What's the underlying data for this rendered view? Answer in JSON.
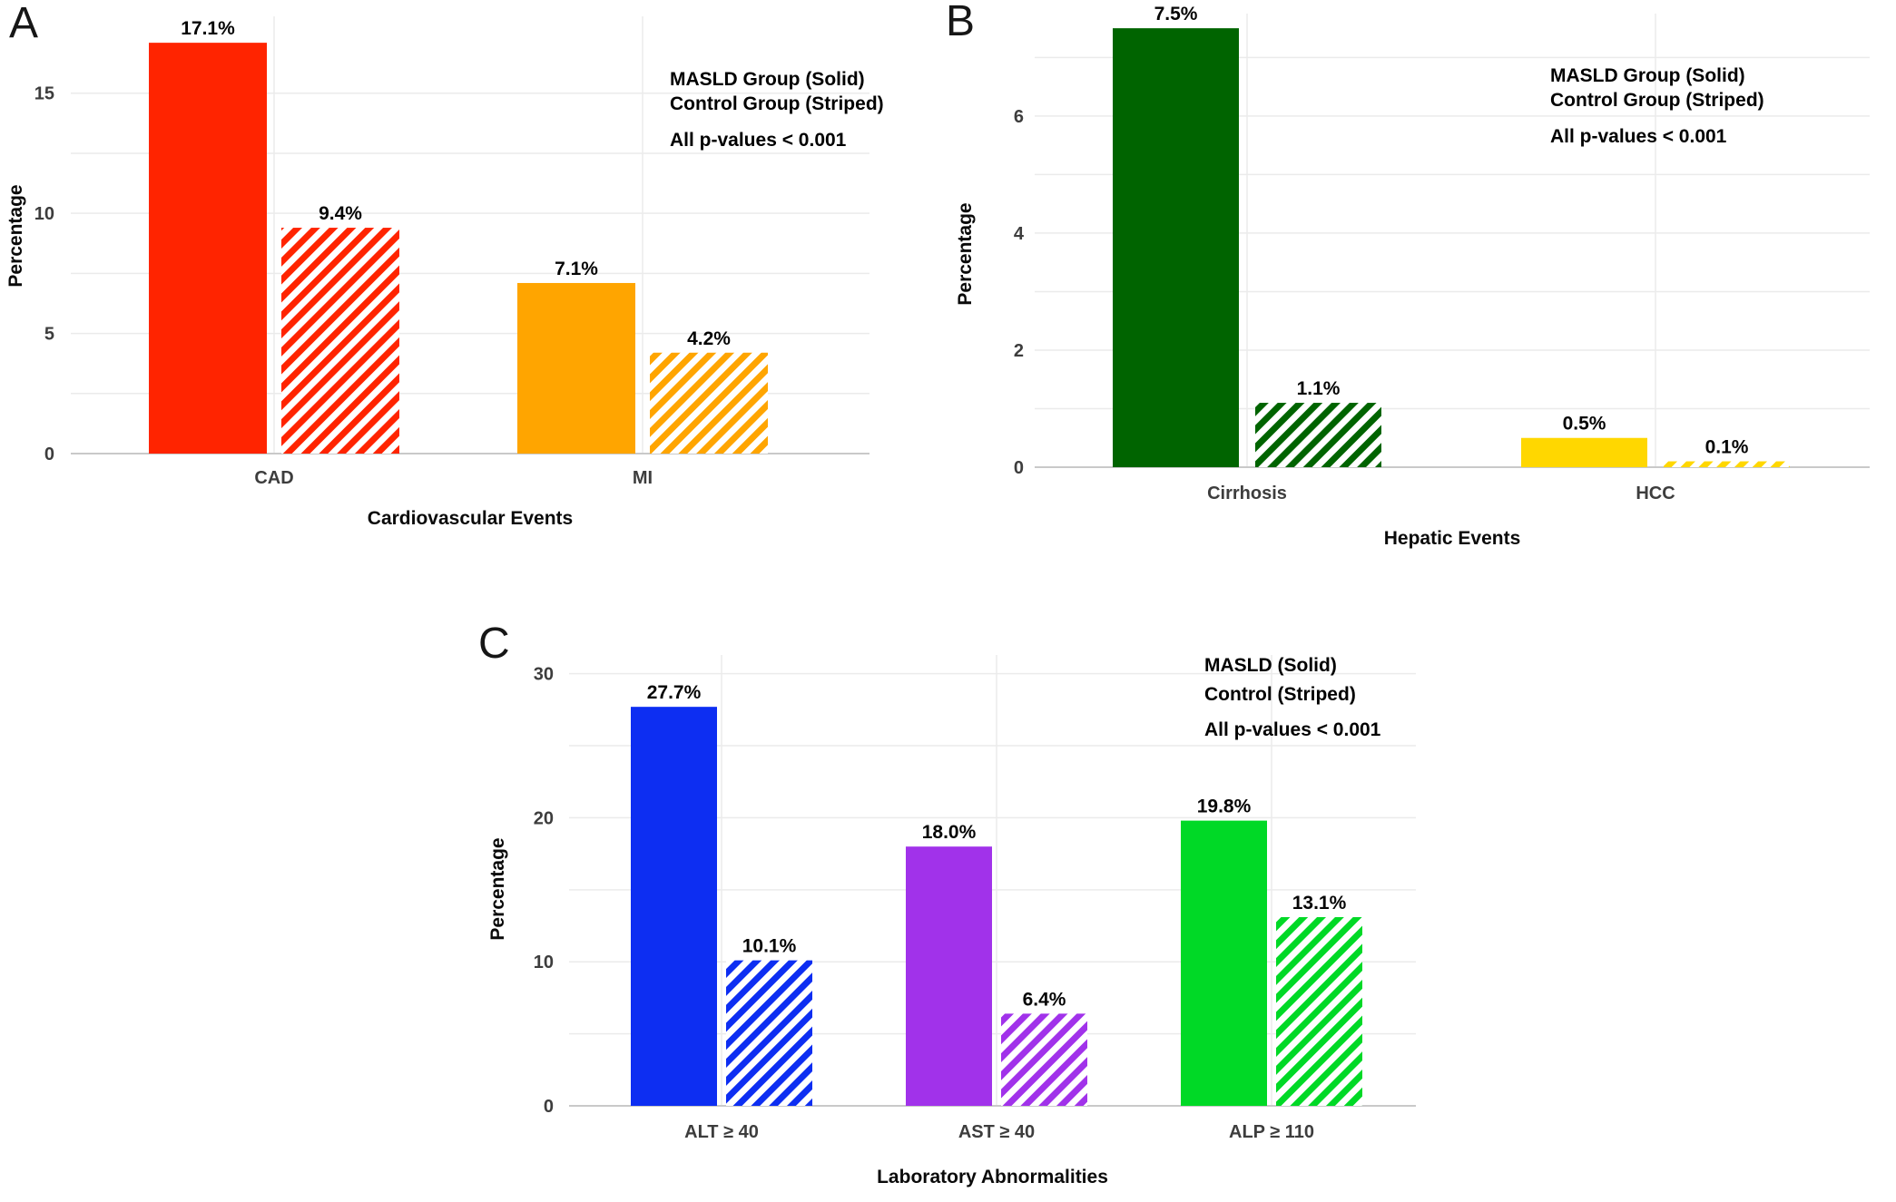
{
  "figure": {
    "background": "#ffffff"
  },
  "chart_data": [
    {
      "panel": "A",
      "type": "bar",
      "title": "",
      "xlabel": "Cardiovascular Events",
      "ylabel": "Percentage",
      "categories": [
        "CAD",
        "MI"
      ],
      "category_colors": [
        "#ff2400",
        "#ffa500"
      ],
      "series": [
        {
          "name": "MASLD Group",
          "pattern": "solid",
          "values": [
            17.1,
            7.1
          ],
          "labels": [
            "17.1%",
            "7.1%"
          ]
        },
        {
          "name": "Control Group",
          "pattern": "striped",
          "values": [
            9.4,
            4.2
          ],
          "labels": [
            "9.4%",
            "4.2%"
          ]
        }
      ],
      "yticks": [
        0,
        5,
        10,
        15
      ],
      "ylim": [
        0,
        18.2
      ],
      "grid_step": 2.5,
      "grid_max": 15,
      "grid": "on",
      "legend_position": "top-right",
      "legend": [
        "MASLD Group (Solid)",
        "Control Group (Striped)"
      ],
      "note": "All p-values < 0.001"
    },
    {
      "panel": "B",
      "type": "bar",
      "title": "",
      "xlabel": "Hepatic Events",
      "ylabel": "Percentage",
      "categories": [
        "Cirrhosis",
        "HCC"
      ],
      "category_colors": [
        "#006400",
        "#ffd700"
      ],
      "series": [
        {
          "name": "MASLD Group",
          "pattern": "solid",
          "values": [
            7.5,
            0.5
          ],
          "labels": [
            "7.5%",
            "0.5%"
          ]
        },
        {
          "name": "Control Group",
          "pattern": "striped",
          "values": [
            1.1,
            0.1
          ],
          "labels": [
            "1.1%",
            "0.1%"
          ]
        }
      ],
      "yticks": [
        0,
        2,
        4,
        6
      ],
      "ylim": [
        0,
        7.75
      ],
      "grid_step": 1,
      "grid_max": 7,
      "grid": "on",
      "legend_position": "top-right",
      "legend": [
        "MASLD Group (Solid)",
        "Control Group (Striped)"
      ],
      "note": "All p-values < 0.001"
    },
    {
      "panel": "C",
      "type": "bar",
      "title": "",
      "xlabel": "Laboratory Abnormalities",
      "ylabel": "Percentage",
      "categories": [
        "ALT ≥ 40",
        "AST ≥ 40",
        "ALP ≥ 110"
      ],
      "category_colors": [
        "#0d2ef2",
        "#a132ea",
        "#00d926"
      ],
      "series": [
        {
          "name": "MASLD",
          "pattern": "solid",
          "values": [
            27.7,
            18.0,
            19.8
          ],
          "labels": [
            "27.7%",
            "18.0%",
            "19.8%"
          ]
        },
        {
          "name": "Control",
          "pattern": "striped",
          "values": [
            10.1,
            6.4,
            13.1
          ],
          "labels": [
            "10.1%",
            "6.4%",
            "13.1%"
          ]
        }
      ],
      "yticks": [
        0,
        10,
        20,
        30
      ],
      "ylim": [
        0,
        31.3
      ],
      "grid_step": 5,
      "grid_max": 30,
      "grid": "on",
      "legend_position": "top-right",
      "legend": [
        "MASLD (Solid)",
        "Control (Striped)"
      ],
      "note": "All p-values < 0.001"
    }
  ]
}
